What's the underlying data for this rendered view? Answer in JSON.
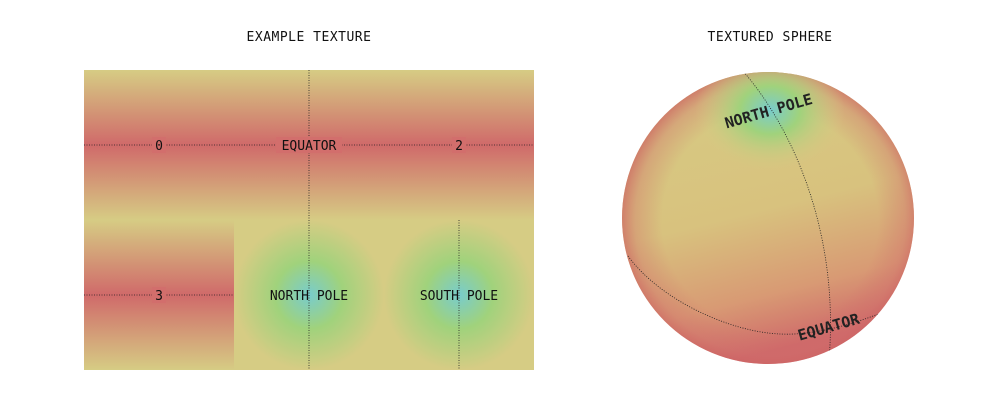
{
  "left_panel": {
    "title": "EXAMPLE TEXTURE",
    "labels": {
      "tile0": "0",
      "equator": "EQUATOR",
      "tile2": "2",
      "tile3": "3",
      "north_pole": "NORTH POLE",
      "south_pole": "SOUTH POLE"
    }
  },
  "right_panel": {
    "title": "TEXTURED SPHERE",
    "labels": {
      "north_pole": "NORTH POLE",
      "equator": "EQUATOR"
    }
  },
  "colors": {
    "band_red": "#d06a6a",
    "base_yellow": "#d6cc84",
    "pole_green": "#a0d27c",
    "pole_cyan": "#78cccc"
  }
}
